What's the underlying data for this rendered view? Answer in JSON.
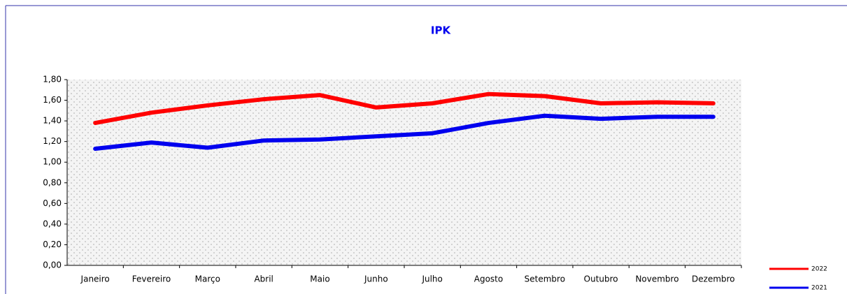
{
  "chart_data": {
    "type": "line",
    "title": "IPK",
    "categories": [
      "Janeiro",
      "Fevereiro",
      "Março",
      "Abril",
      "Maio",
      "Junho",
      "Julho",
      "Agosto",
      "Setembro",
      "Outubro",
      "Novembro",
      "Dezembro"
    ],
    "series": [
      {
        "name": "2022",
        "color": "#ff0000",
        "values": [
          1.38,
          1.48,
          1.55,
          1.61,
          1.65,
          1.53,
          1.57,
          1.66,
          1.64,
          1.57,
          1.58,
          1.57
        ]
      },
      {
        "name": "2021",
        "color": "#0000ee",
        "values": [
          1.13,
          1.19,
          1.14,
          1.21,
          1.22,
          1.25,
          1.28,
          1.38,
          1.45,
          1.42,
          1.44,
          1.44
        ]
      }
    ],
    "ylim": [
      0,
      1.8
    ],
    "yticks": [
      {
        "value": 0,
        "label": "0,00"
      },
      {
        "value": 0.2,
        "label": "0,20"
      },
      {
        "value": 0.4,
        "label": "0,40"
      },
      {
        "value": 0.6,
        "label": "0,60"
      },
      {
        "value": 0.8,
        "label": "0,80"
      },
      {
        "value": 1.0,
        "label": "1,00"
      },
      {
        "value": 1.2,
        "label": "1,20"
      },
      {
        "value": 1.4,
        "label": "1,40"
      },
      {
        "value": 1.6,
        "label": "1,60"
      },
      {
        "value": 1.8,
        "label": "1,80"
      }
    ],
    "legend": "bottom-right"
  }
}
